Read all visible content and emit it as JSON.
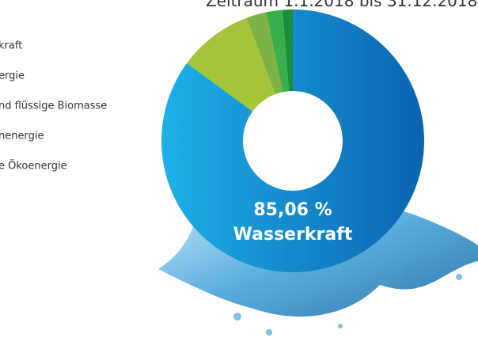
{
  "chart_data": {
    "type": "donut",
    "title": "Zeitraum 1.1.2018 bis 31.12.2018",
    "categories": [
      "kraft",
      "ergie",
      "nd flüssige Biomasse",
      "nenergie",
      "e Ökoenergie"
    ],
    "values": [
      85.06,
      9.2,
      2.5,
      2,
      1.24
    ],
    "value_labels": [
      "85,06 %",
      null,
      null,
      null,
      null
    ],
    "center_label": "Wasserkraft",
    "colors": [
      "#1a7fc8",
      "#a4c43a",
      "#7db346",
      "#3aae4a",
      "#1e8a3c"
    ]
  }
}
